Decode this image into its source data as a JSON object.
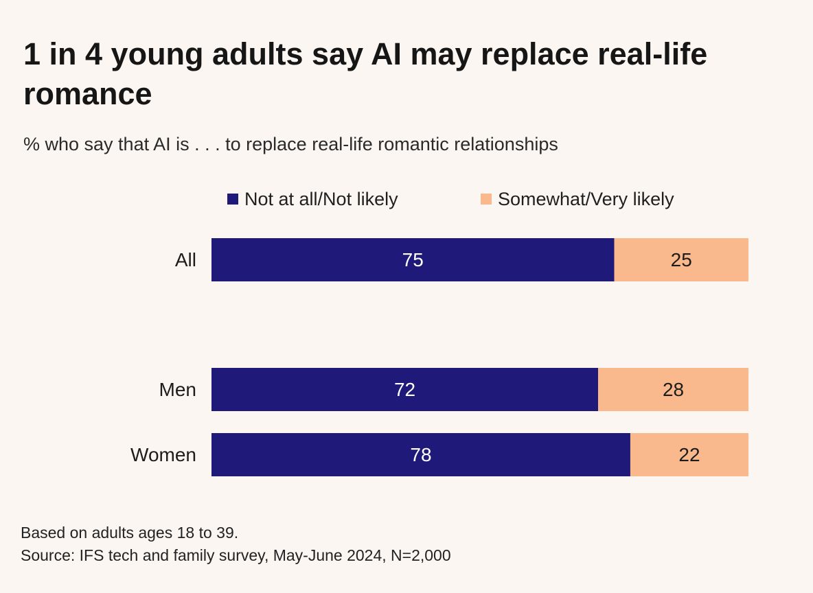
{
  "chart_data": {
    "type": "bar",
    "orientation": "horizontal",
    "stacked": true,
    "title": "1 in 4 young adults say AI may replace real-life romance",
    "subtitle": "% who say that AI is . . . to replace real-life romantic relationships",
    "categories": [
      "All",
      "Men",
      "Women"
    ],
    "series": [
      {
        "name": "Not at all/Not likely",
        "values": [
          75,
          72,
          78
        ],
        "color": "#1f1a7a",
        "label_color": "#ffffff"
      },
      {
        "name": "Somewhat/Very likely",
        "values": [
          25,
          28,
          22
        ],
        "color": "#f9b98c",
        "label_color": "#1c1c1c"
      }
    ],
    "xlim": [
      0,
      100
    ],
    "grid": false,
    "legend_position": "top"
  },
  "footer": {
    "note": "Based on adults ages 18 to 39.",
    "source": "Source: IFS tech and family survey, May-June 2024, N=2,000"
  }
}
